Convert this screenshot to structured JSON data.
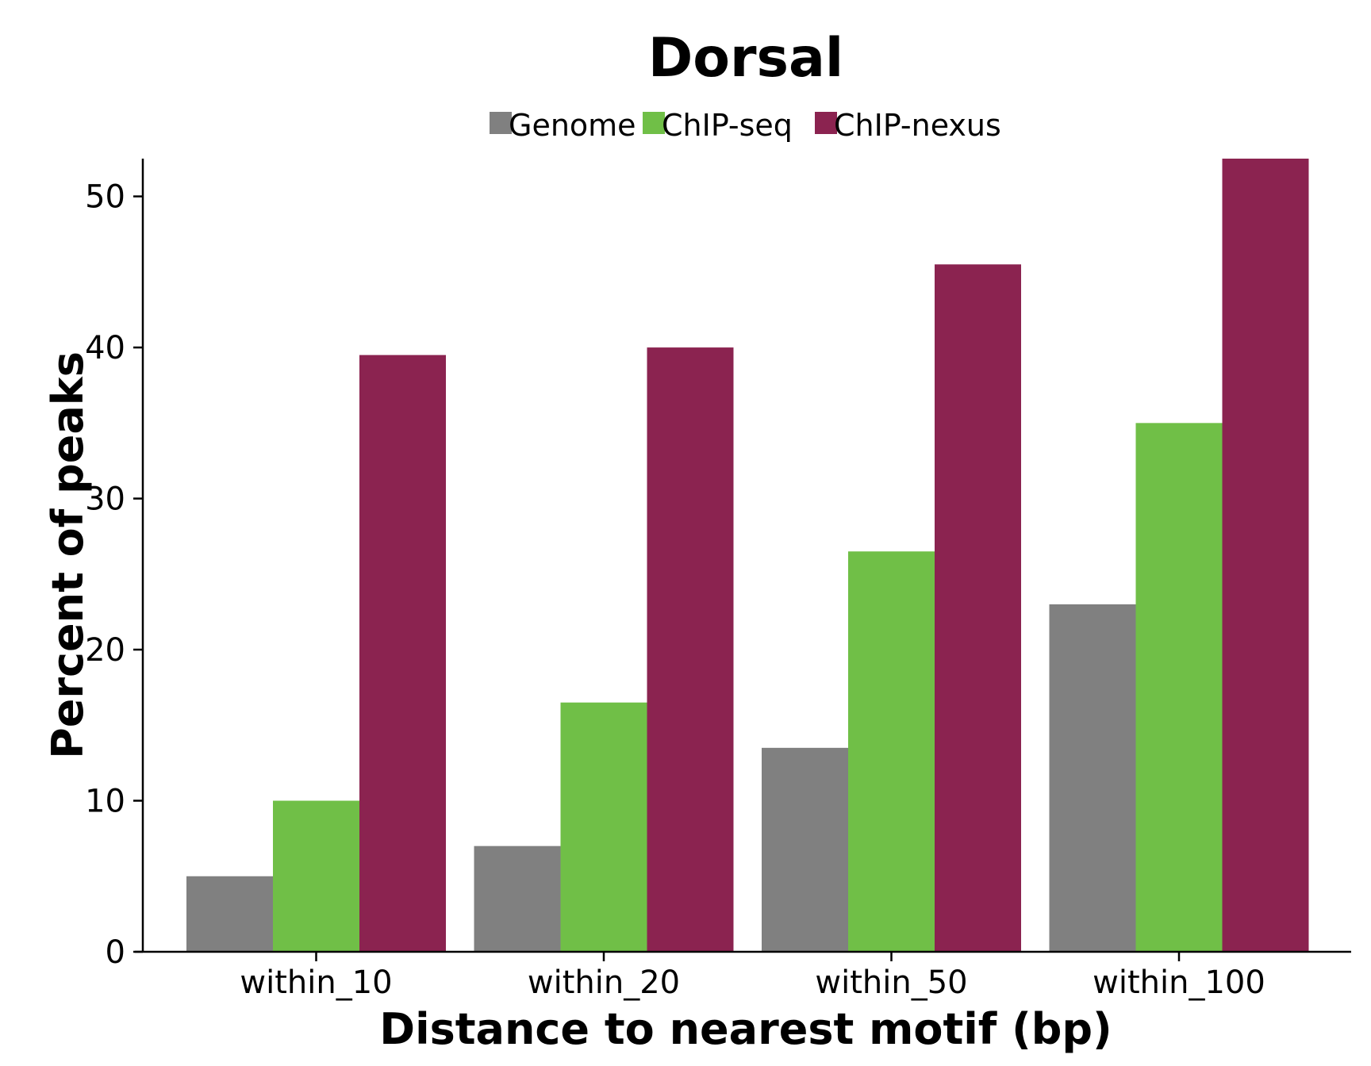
{
  "chart_data": {
    "type": "bar",
    "title": "Dorsal",
    "xlabel": "Distance to nearest motif (bp)",
    "ylabel": "Percent of peaks",
    "categories": [
      "within_10",
      "within_20",
      "within_50",
      "within_100"
    ],
    "series": [
      {
        "name": "Genome",
        "color": "#808080",
        "values": [
          5,
          7,
          13.5,
          23
        ]
      },
      {
        "name": "ChIP-seq",
        "color": "#70bf47",
        "values": [
          10,
          16.5,
          26.5,
          35
        ]
      },
      {
        "name": "ChIP-nexus",
        "color": "#8b2350",
        "values": [
          39.5,
          40,
          45.5,
          52.5
        ]
      }
    ],
    "ylim": [
      0,
      52.5
    ],
    "yticks": [
      "0",
      "10",
      "20",
      "30",
      "40",
      "50"
    ],
    "grid": false,
    "legend": "top-center"
  }
}
